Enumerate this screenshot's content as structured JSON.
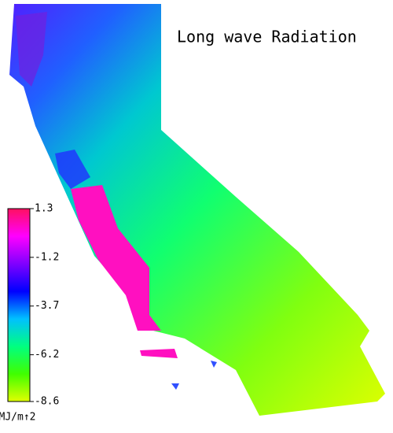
{
  "title": "Long wave Radiation",
  "colorbar": {
    "range": [
      -8.6,
      1.3
    ],
    "ticks": [
      1.3,
      -1.2,
      -3.7,
      -6.2,
      -8.6
    ],
    "unit": "MJ/m↑2",
    "colors": [
      "#ff1060",
      "#ff00ff",
      "#8000ff",
      "#0000ff",
      "#00c0ff",
      "#00ff80",
      "#40ff00",
      "#e0ff00"
    ]
  }
}
